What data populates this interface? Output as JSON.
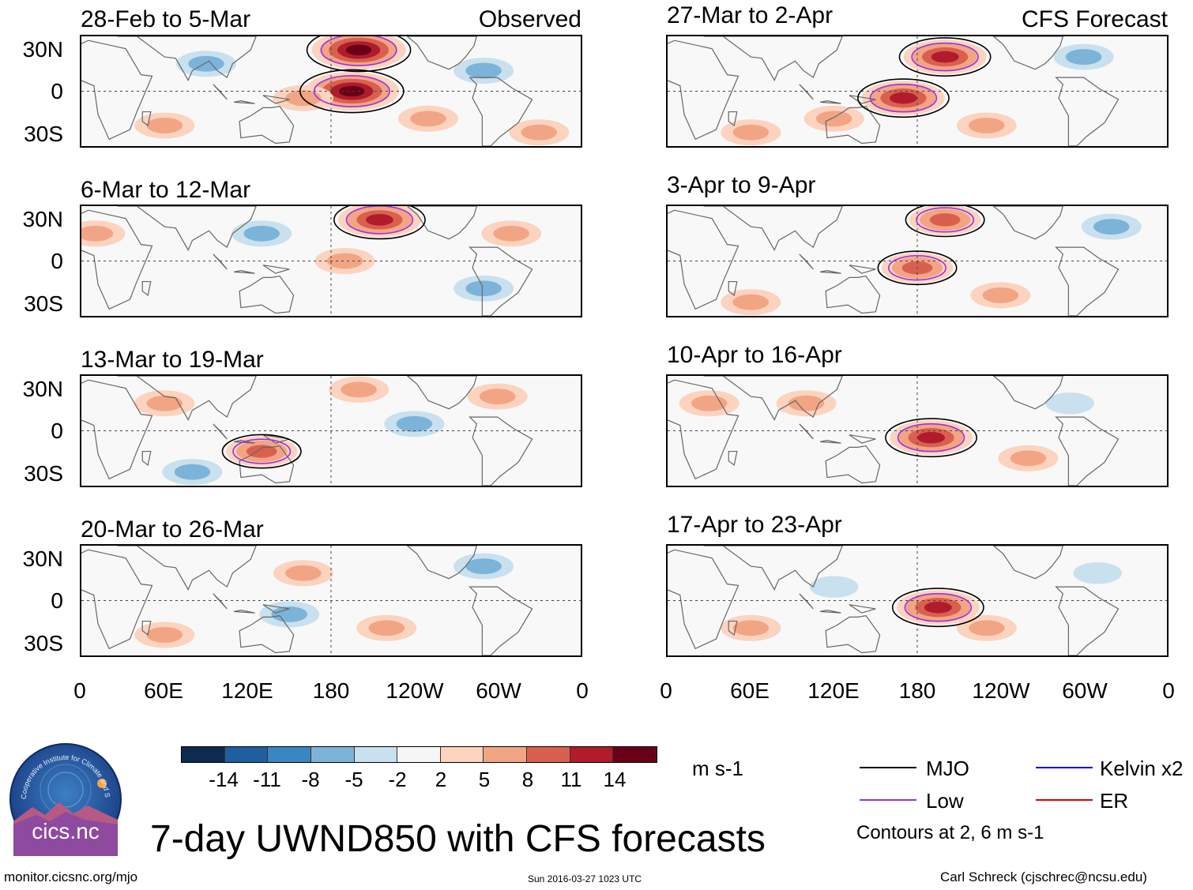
{
  "title": "7-day UWND850 with CFS forecasts",
  "footer": {
    "url": "monitor.cicsnc.org/mjo",
    "timestamp": "Sun 2016-03-27 1023 UTC",
    "author": "Carl Schreck (cjschrec@ncsu.edu)"
  },
  "logo": {
    "ring_text": "Cooperative Institute for Climate and Satellites",
    "name": "cics.nc"
  },
  "colorbar": {
    "units": "m s-1",
    "ticks": [
      "-14",
      "-11",
      "-8",
      "-5",
      "-2",
      "2",
      "5",
      "8",
      "11",
      "14"
    ],
    "colors": [
      "#0f2a4f",
      "#1f5fa0",
      "#3a86c0",
      "#7bb4d8",
      "#c9e0ee",
      "#f6f6f6",
      "#fbd3bf",
      "#f2a585",
      "#d9604f",
      "#b01c2c",
      "#6a0018"
    ]
  },
  "legend": {
    "items": [
      {
        "label": "MJO",
        "color": "#000000"
      },
      {
        "label": "Kelvin x2",
        "color": "#0000dd"
      },
      {
        "label": "Low",
        "color": "#9a32dd"
      },
      {
        "label": "ER",
        "color": "#dd0000"
      }
    ],
    "note": "Contours at 2, 6 m s-1"
  },
  "axes": {
    "lat_labels": [
      "30N",
      "0",
      "30S"
    ],
    "lon_labels": [
      "0",
      "60E",
      "120E",
      "180",
      "120W",
      "60W",
      "0"
    ]
  },
  "chart_data": {
    "type": "heatmap",
    "variable": "850-hPa zonal wind anomaly",
    "units": "m s-1",
    "xrange": [
      0,
      360
    ],
    "yrange": [
      -40,
      40
    ],
    "panels": [
      {
        "title": "28-Feb to 5-Mar",
        "label": "Observed",
        "anomalies": [
          {
            "lon": 200,
            "lat": 30,
            "value": 14
          },
          {
            "lon": 195,
            "lat": 0,
            "value": 14
          },
          {
            "lon": 160,
            "lat": -5,
            "value": 5
          },
          {
            "lon": 90,
            "lat": 20,
            "value": -5
          },
          {
            "lon": 290,
            "lat": 15,
            "value": -5
          },
          {
            "lon": 330,
            "lat": -30,
            "value": 5
          },
          {
            "lon": 60,
            "lat": -25,
            "value": 5
          },
          {
            "lon": 250,
            "lat": -20,
            "value": 5
          }
        ]
      },
      {
        "title": "27-Mar to 2-Apr",
        "label": "CFS Forecast",
        "anomalies": [
          {
            "lon": 200,
            "lat": 25,
            "value": 11
          },
          {
            "lon": 170,
            "lat": -5,
            "value": 11
          },
          {
            "lon": 300,
            "lat": 25,
            "value": -5
          },
          {
            "lon": 120,
            "lat": -20,
            "value": 5
          },
          {
            "lon": 230,
            "lat": -25,
            "value": 5
          },
          {
            "lon": 60,
            "lat": -30,
            "value": 5
          }
        ]
      },
      {
        "title": "6-Mar to 12-Mar",
        "label": "",
        "anomalies": [
          {
            "lon": 215,
            "lat": 30,
            "value": 11
          },
          {
            "lon": 10,
            "lat": 20,
            "value": 5
          },
          {
            "lon": 190,
            "lat": 0,
            "value": 5
          },
          {
            "lon": 130,
            "lat": 20,
            "value": -5
          },
          {
            "lon": 290,
            "lat": -20,
            "value": -5
          },
          {
            "lon": 310,
            "lat": 20,
            "value": 5
          }
        ]
      },
      {
        "title": "3-Apr to 9-Apr",
        "label": "",
        "anomalies": [
          {
            "lon": 200,
            "lat": 30,
            "value": 8
          },
          {
            "lon": 180,
            "lat": -5,
            "value": 8
          },
          {
            "lon": 320,
            "lat": 25,
            "value": -5
          },
          {
            "lon": 240,
            "lat": -25,
            "value": 5
          },
          {
            "lon": 60,
            "lat": -30,
            "value": 5
          }
        ]
      },
      {
        "title": "13-Mar to 19-Mar",
        "label": "",
        "anomalies": [
          {
            "lon": 130,
            "lat": -15,
            "value": 8
          },
          {
            "lon": 60,
            "lat": 20,
            "value": 5
          },
          {
            "lon": 200,
            "lat": 30,
            "value": 5
          },
          {
            "lon": 300,
            "lat": 25,
            "value": 5
          },
          {
            "lon": 240,
            "lat": 5,
            "value": -5
          },
          {
            "lon": 80,
            "lat": -30,
            "value": -5
          }
        ]
      },
      {
        "title": "10-Apr to 16-Apr",
        "label": "",
        "anomalies": [
          {
            "lon": 190,
            "lat": -5,
            "value": 11
          },
          {
            "lon": 100,
            "lat": 20,
            "value": 5
          },
          {
            "lon": 260,
            "lat": -20,
            "value": 5
          },
          {
            "lon": 30,
            "lat": 20,
            "value": 5
          },
          {
            "lon": 290,
            "lat": 20,
            "value": -2
          }
        ]
      },
      {
        "title": "20-Mar to 26-Mar",
        "label": "",
        "anomalies": [
          {
            "lon": 160,
            "lat": 20,
            "value": 5
          },
          {
            "lon": 60,
            "lat": -25,
            "value": 5
          },
          {
            "lon": 220,
            "lat": -20,
            "value": 5
          },
          {
            "lon": 290,
            "lat": 25,
            "value": -5
          },
          {
            "lon": 150,
            "lat": -10,
            "value": -5
          }
        ]
      },
      {
        "title": "17-Apr to 23-Apr",
        "label": "",
        "anomalies": [
          {
            "lon": 195,
            "lat": -5,
            "value": 11
          },
          {
            "lon": 230,
            "lat": -20,
            "value": 5
          },
          {
            "lon": 60,
            "lat": -20,
            "value": 5
          },
          {
            "lon": 310,
            "lat": 20,
            "value": -2
          },
          {
            "lon": 120,
            "lat": 10,
            "value": -2
          }
        ]
      }
    ]
  }
}
